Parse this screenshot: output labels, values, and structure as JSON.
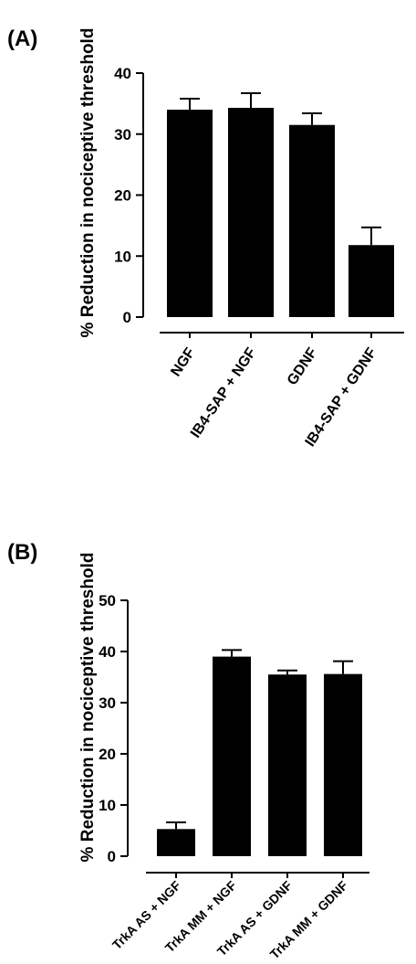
{
  "chart_data": [
    {
      "panel_label": "(A)",
      "type": "bar",
      "ylabel": "% Reduction in nociceptive threshold",
      "ylim": [
        0,
        40
      ],
      "yticks": [
        "0",
        "10",
        "20",
        "30",
        "40"
      ],
      "categories": [
        "NGF",
        "IB4-SAP + NGF",
        "GDNF",
        "IB4-SAP + GDNF"
      ],
      "values": [
        34,
        34.3,
        31.5,
        11.8
      ],
      "errors": [
        1.8,
        2.4,
        1.9,
        2.9
      ],
      "bar_color": "#000000"
    },
    {
      "panel_label": "(B)",
      "type": "bar",
      "ylabel": "% Reduction in nociceptive threshold",
      "ylim": [
        0,
        50
      ],
      "yticks": [
        "0",
        "10",
        "20",
        "30",
        "40",
        "50"
      ],
      "categories": [
        "TrkA AS + NGF",
        "TrkA MM + NGF",
        "TrkA AS + GDNF",
        "TrkA MM + GDNF"
      ],
      "values": [
        5.3,
        39,
        35.5,
        35.6
      ],
      "errors": [
        1.3,
        1.3,
        0.8,
        2.5
      ],
      "bar_color": "#000000"
    }
  ]
}
